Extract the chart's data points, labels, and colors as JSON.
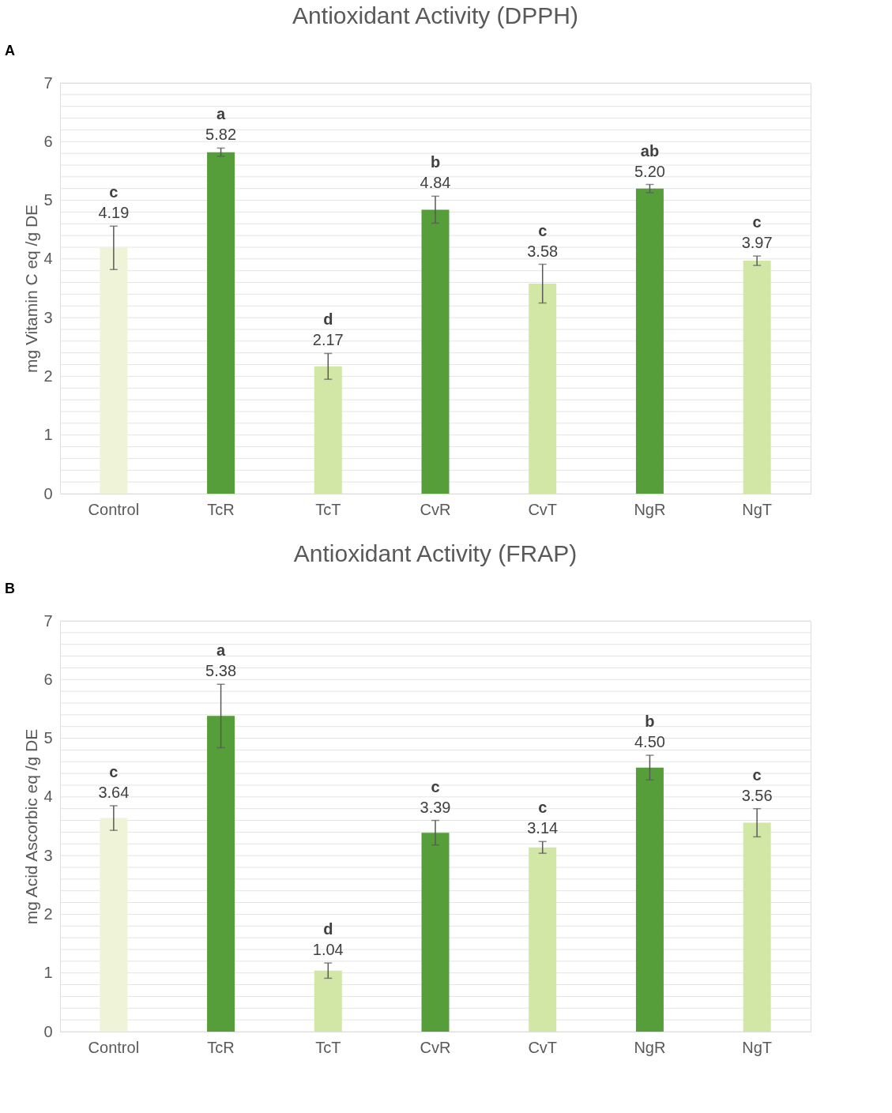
{
  "chart_data": [
    {
      "type": "bar",
      "title": "Antioxidant Activity (DPPH)",
      "ylabel": "mg Vitamin C eq /g DE",
      "categories": [
        "Control",
        "TcR",
        "TcT",
        "CvR",
        "CvT",
        "NgR",
        "NgT"
      ],
      "values": [
        4.19,
        5.82,
        2.17,
        4.84,
        3.58,
        5.2,
        3.97
      ],
      "value_labels": [
        "4.19",
        "5.82",
        "2.17",
        "4.84",
        "3.58",
        "5.20",
        "3.97"
      ],
      "colors": [
        "#eff4d9",
        "#559e3a",
        "#d2e6a6",
        "#559e3a",
        "#d2e6a6",
        "#559e3a",
        "#d2e6a6"
      ],
      "errors": [
        0.37,
        0.07,
        0.22,
        0.23,
        0.33,
        0.07,
        0.08
      ],
      "ylim": [
        0,
        7
      ],
      "yticks": [
        0,
        {
          "value": 0.2,
          "label": null
        },
        {
          "value": 0.4,
          "label": null
        },
        {
          "value": 0.6,
          "label": null
        },
        {
          "value": 0.8,
          "label": null
        },
        1,
        {
          "value": 1.2,
          "label": null
        },
        {
          "value": 1.4,
          "label": null
        },
        {
          "value": 1.6,
          "label": null
        },
        {
          "value": 1.8,
          "label": null
        },
        2,
        {
          "value": 2.2,
          "label": null
        },
        {
          "value": 2.4,
          "label": null
        },
        {
          "value": 2.6,
          "label": null
        },
        {
          "value": 2.8,
          "label": null
        },
        3,
        {
          "value": 3.2,
          "label": null
        },
        {
          "value": 3.4,
          "label": null
        },
        {
          "value": 3.6,
          "label": null
        },
        {
          "value": 3.8,
          "label": null
        },
        4,
        {
          "value": 4.2,
          "label": null
        },
        {
          "value": 4.4,
          "label": null
        },
        {
          "value": 4.6,
          "label": null
        },
        {
          "value": 4.8,
          "label": null
        },
        5,
        {
          "value": 5.2,
          "label": null
        },
        {
          "value": 5.4,
          "label": null
        },
        {
          "value": 5.6,
          "label": null
        },
        {
          "value": 5.8,
          "label": null
        },
        6,
        {
          "value": 6.2,
          "label": null
        },
        {
          "value": 6.4,
          "label": null
        },
        {
          "value": 6.6,
          "label": null
        },
        {
          "value": 6.8,
          "label": null
        },
        7
      ],
      "grid": "y",
      "annotations": [
        "A",
        "c",
        "a",
        "d",
        "b",
        "c",
        "ab",
        "c"
      ]
    },
    {
      "type": "bar",
      "title": "Antioxidant Activity (FRAP)",
      "ylabel": "mg Acid Ascorbic eq /g DE",
      "categories": [
        "Control",
        "TcR",
        "TcT",
        "CvR",
        "CvT",
        "NgR",
        "NgT"
      ],
      "values": [
        3.64,
        5.38,
        1.04,
        3.39,
        3.14,
        4.5,
        3.56
      ],
      "value_labels": [
        "3.64",
        "5.38",
        "1.04",
        "3.39",
        "3.14",
        "4.50",
        "3.56"
      ],
      "colors": [
        "#eff4d9",
        "#559e3a",
        "#d2e6a6",
        "#559e3a",
        "#d2e6a6",
        "#559e3a",
        "#d2e6a6"
      ],
      "errors": [
        0.21,
        0.54,
        0.13,
        0.21,
        0.1,
        0.21,
        0.24
      ],
      "ylim": [
        0,
        7
      ],
      "yticks": [
        0,
        {
          "value": 0.2,
          "label": null
        },
        {
          "value": 0.4,
          "label": null
        },
        {
          "value": 0.6,
          "label": null
        },
        {
          "value": 0.8,
          "label": null
        },
        1,
        {
          "value": 1.2,
          "label": null
        },
        {
          "value": 1.4,
          "label": null
        },
        {
          "value": 1.6,
          "label": null
        },
        {
          "value": 1.8,
          "label": null
        },
        2,
        {
          "value": 2.2,
          "label": null
        },
        {
          "value": 2.4,
          "label": null
        },
        {
          "value": 2.6,
          "label": null
        },
        {
          "value": 2.8,
          "label": null
        },
        3,
        {
          "value": 3.2,
          "label": null
        },
        {
          "value": 3.4,
          "label": null
        },
        {
          "value": 3.6,
          "label": null
        },
        {
          "value": 3.8,
          "label": null
        },
        4,
        {
          "value": 4.2,
          "label": null
        },
        {
          "value": 4.4,
          "label": null
        },
        {
          "value": 4.6,
          "label": null
        },
        {
          "value": 4.8,
          "label": null
        },
        5,
        {
          "value": 5.2,
          "label": null
        },
        {
          "value": 5.4,
          "label": null
        },
        {
          "value": 5.6,
          "label": null
        },
        {
          "value": 5.8,
          "label": null
        },
        6,
        {
          "value": 6.2,
          "label": null
        },
        {
          "value": 6.4,
          "label": null
        },
        {
          "value": 6.6,
          "label": null
        },
        {
          "value": 6.8,
          "label": null
        },
        7
      ],
      "grid": "y",
      "annotations": [
        "B",
        "c",
        "a",
        "d",
        "c",
        "c",
        "b",
        "c"
      ]
    }
  ]
}
